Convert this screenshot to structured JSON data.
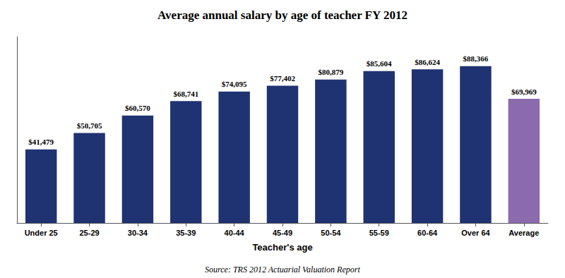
{
  "chart_data": {
    "type": "bar",
    "title": "Average annual salary by age of teacher FY 2012",
    "xlabel": "Teacher's age",
    "annotation": "Source: TRS 2012 Actuarial Valuation Report",
    "categories": [
      "Under 25",
      "25-29",
      "30-34",
      "35-39",
      "40-44",
      "45-49",
      "50-54",
      "55-59",
      "60-64",
      "Over 64",
      "Average"
    ],
    "values": [
      41479,
      50705,
      60570,
      68741,
      74095,
      77402,
      80879,
      85604,
      86624,
      88366,
      69969
    ],
    "value_labels": [
      "$41,479",
      "$50,705",
      "$60,570",
      "$68,741",
      "$74,095",
      "$77,402",
      "$80,879",
      "$85,604",
      "$86,624",
      "$88,366",
      "$69,969"
    ],
    "data_labels": true,
    "colors": [
      "#1F3272",
      "#1F3272",
      "#1F3272",
      "#1F3272",
      "#1F3272",
      "#1F3272",
      "#1F3272",
      "#1F3272",
      "#1F3272",
      "#1F3272",
      "#8B6AAE"
    ],
    "ylim": [
      0,
      105000
    ],
    "tick_labels": "x",
    "grid": false
  }
}
